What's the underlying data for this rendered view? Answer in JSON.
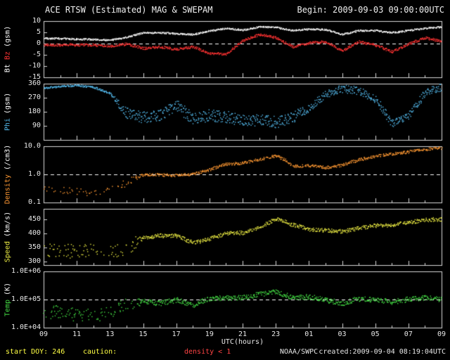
{
  "header": {
    "title": "ACE RTSW (Estimated) MAG & SWEPAM",
    "begin_label": "Begin: 2009-09-03 09:00:00UTC"
  },
  "footer": {
    "start_doy": "start DOY: 246",
    "caution": "caution:",
    "caution_detail": "density < 1",
    "xaxis_label": "UTC(hours)",
    "agency": "NOAA/SWPC",
    "created": "created:2009-09-04 08:19:04UTC"
  },
  "colors": {
    "background": "#000000",
    "axis": "#d8d8d8",
    "text": "#e8e8e8",
    "bt": "#ffffff",
    "bz": "#ff3333",
    "phi": "#55bbee",
    "density": "#ff9933",
    "speed": "#eeee44",
    "temp": "#44dd44",
    "caution_text": "#ffff44",
    "caution_detail_text": "#ff4444"
  },
  "chart_data": {
    "type": "scatter",
    "title": "ACE RTSW (Estimated) MAG & SWEPAM",
    "begin": "2009-09-03 09:00:00UTC",
    "xlabel": "UTC(hours)",
    "x_range_hours": [
      9,
      33
    ],
    "x_ticks": [
      "09",
      "11",
      "13",
      "15",
      "17",
      "19",
      "21",
      "23",
      "01",
      "03",
      "05",
      "07",
      "09"
    ],
    "x_hours": [
      9,
      10,
      11,
      12,
      13,
      14,
      15,
      16,
      17,
      18,
      19,
      20,
      21,
      22,
      23,
      24,
      25,
      26,
      27,
      28,
      29,
      30,
      31,
      32,
      33
    ],
    "panels": [
      {
        "id": "mag",
        "ylabel_parts": [
          {
            "text": "Bt",
            "color": "#ffffff"
          },
          {
            "text": "Bz",
            "color": "#ff3333"
          },
          {
            "text": "(gsm)",
            "color": "#ffffff"
          }
        ],
        "ymin": -15,
        "ymax": 10,
        "log": false,
        "dash_y": 0,
        "yticks": [
          [
            10,
            "10"
          ],
          [
            5,
            "5"
          ],
          [
            0,
            "0"
          ],
          [
            -5,
            "-5"
          ],
          [
            -10,
            "-10"
          ],
          [
            -15,
            "-15"
          ]
        ],
        "series": [
          {
            "name": "Bt",
            "color": "#ffffff",
            "y": [
              2.5,
              2.4,
              2.2,
              2.0,
              1.7,
              3.0,
              5.0,
              5.0,
              4.6,
              4.2,
              5.8,
              7.0,
              6.2,
              7.6,
              7.4,
              6.0,
              6.6,
              6.4,
              4.2,
              6.0,
              6.0,
              5.0,
              6.0,
              7.0,
              7.5
            ],
            "jitter": {
              "x": [
                9,
                33
              ],
              "a": [
                0.35,
                0.35
              ]
            },
            "dropout": {
              "x": [
                9,
                33
              ],
              "p": [
                0,
                0
              ]
            }
          },
          {
            "name": "Bz",
            "color": "#ff3333",
            "y": [
              -0.5,
              -0.4,
              -0.5,
              -0.4,
              -0.9,
              0.0,
              -2.0,
              -1.2,
              -2.4,
              -1.2,
              -4.2,
              -4.6,
              1.5,
              4.2,
              2.8,
              -1.2,
              0.5,
              1.0,
              -3.0,
              1.0,
              -0.5,
              -3.4,
              0.0,
              2.8,
              1.2
            ],
            "jitter": {
              "x": [
                9,
                33
              ],
              "a": [
                0.55,
                0.55
              ]
            },
            "dropout": {
              "x": [
                9,
                33
              ],
              "p": [
                0,
                0
              ]
            }
          }
        ]
      },
      {
        "id": "phi",
        "ylabel_parts": [
          {
            "text": "Phi",
            "color": "#55bbee"
          },
          {
            "text": "(gsm)",
            "color": "#ffffff"
          }
        ],
        "ymin": 0,
        "ymax": 360,
        "log": false,
        "dash_y": null,
        "yticks": [
          [
            360,
            "360"
          ],
          [
            270,
            "270"
          ],
          [
            180,
            "180"
          ],
          [
            90,
            "90"
          ]
        ],
        "series": [
          {
            "name": "Phi",
            "color": "#55bbee",
            "y": [
              335,
              345,
              352,
              340,
              300,
              170,
              145,
              165,
              225,
              135,
              160,
              150,
              125,
              128,
              115,
              150,
              205,
              295,
              330,
              318,
              265,
              110,
              160,
              305,
              340
            ],
            "jitter": {
              "x": [
                9,
                13,
                14,
                24,
                25,
                33
              ],
              "a": [
                6,
                6,
                38,
                38,
                26,
                26
              ]
            },
            "dropout": {
              "x": [
                9,
                33
              ],
              "p": [
                0,
                0
              ]
            }
          }
        ]
      },
      {
        "id": "density",
        "ylabel_parts": [
          {
            "text": "Density",
            "color": "#ff9933"
          },
          {
            "text": "(/cm3)",
            "color": "#ffffff"
          }
        ],
        "ymin": 0.1,
        "ymax": 10,
        "log": true,
        "dash_y": 1.0,
        "yticks": [
          [
            10,
            "10.0"
          ],
          [
            1,
            "1.0"
          ],
          [
            0.1,
            "0.1"
          ]
        ],
        "series": [
          {
            "name": "Density",
            "color": "#ff9933",
            "y": [
              0.3,
              0.28,
              0.26,
              0.22,
              0.3,
              0.5,
              1.0,
              1.0,
              0.95,
              1.05,
              1.5,
              2.4,
              2.6,
              3.5,
              4.8,
              2.0,
              2.1,
              1.8,
              2.2,
              3.4,
              4.6,
              5.5,
              6.5,
              8.0,
              9.0
            ],
            "jitter": {
              "x": [
                9,
                14,
                15,
                33
              ],
              "a": [
                0.12,
                0.12,
                0.05,
                0.05
              ]
            },
            "dropout": {
              "x": [
                9,
                14.4,
                14.9,
                33
              ],
              "p": [
                0.72,
                0.72,
                0.12,
                0.12
              ]
            }
          }
        ]
      },
      {
        "id": "speed",
        "ylabel_parts": [
          {
            "text": "Speed",
            "color": "#eeee44"
          },
          {
            "text": "(km/s)",
            "color": "#ffffff"
          }
        ],
        "ymin": 287.5,
        "ymax": 487.5,
        "log": false,
        "dash_y": null,
        "yticks": [
          [
            450,
            "450"
          ],
          [
            400,
            "400"
          ],
          [
            350,
            "350"
          ],
          [
            300,
            "300"
          ]
        ],
        "series": [
          {
            "name": "Speed",
            "color": "#eeee44",
            "y": [
              340,
              345,
              335,
              338,
              332,
              352,
              386,
              394,
              393,
              368,
              382,
              402,
              404,
              422,
              454,
              432,
              417,
              413,
              408,
              421,
              429,
              431,
              440,
              450,
              452
            ],
            "jitter": {
              "x": [
                9,
                14.4,
                14.9,
                33
              ],
              "a": [
                26,
                26,
                7,
                7
              ]
            },
            "dropout": {
              "x": [
                9,
                14.4,
                14.9,
                33
              ],
              "p": [
                0.6,
                0.6,
                0.06,
                0.06
              ]
            }
          }
        ]
      },
      {
        "id": "temp",
        "ylabel_parts": [
          {
            "text": "Temp",
            "color": "#44dd44"
          },
          {
            "text": "(K)",
            "color": "#ffffff"
          }
        ],
        "ymin": 10000,
        "ymax": 1000000,
        "log": true,
        "dash_y": 100000,
        "yticks": [
          [
            1000000,
            "1.0E+06"
          ],
          [
            100000,
            "1.0E+05"
          ],
          [
            10000,
            "1.0E+04"
          ]
        ],
        "series": [
          {
            "name": "Temp",
            "color": "#44dd44",
            "y": [
              30000,
              40000,
              26000,
              28000,
              32000,
              70000,
              90000,
              75000,
              100000,
              65000,
              110000,
              120000,
              120000,
              160000,
              190000,
              120000,
              130000,
              100000,
              75000,
              110000,
              100000,
              85000,
              105000,
              120000,
              100000
            ],
            "jitter": {
              "x": [
                9,
                14.4,
                14.9,
                33
              ],
              "a": [
                0.24,
                0.24,
                0.09,
                0.09
              ]
            },
            "dropout": {
              "x": [
                9,
                14.4,
                14.9,
                33
              ],
              "p": [
                0.55,
                0.55,
                0.08,
                0.08
              ]
            }
          }
        ]
      }
    ]
  }
}
